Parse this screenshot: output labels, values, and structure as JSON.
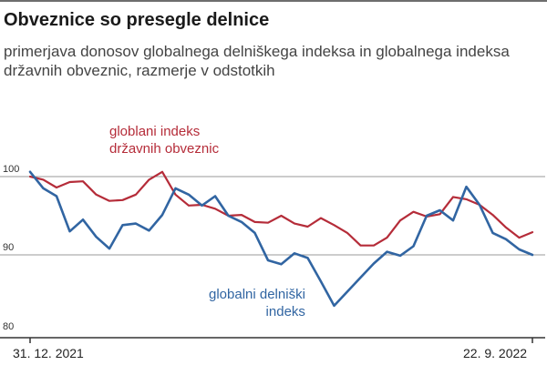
{
  "title": "Obveznice so presegle delnice",
  "subtitle": "primerjava donosov globalnega delniškega indeksa in globalnega indeksa državnih obveznic, razmerje v odstotkih",
  "chart_data": {
    "type": "line",
    "title": "Obveznice so presegle delnice",
    "subtitle": "primerjava donosov globalnega delniškega indeksa in globalnega indeksa državnih obveznic, razmerje v odstotkih",
    "xlabel": "",
    "ylabel": "",
    "x_ticks": [
      "31. 12. 2021",
      "22. 9. 2022"
    ],
    "y_ticks": [
      100,
      90,
      80
    ],
    "ylim": [
      79,
      103
    ],
    "grid": "horizontal at 100 and 90",
    "x": [
      0,
      1,
      2,
      3,
      4,
      5,
      6,
      7,
      8,
      9,
      10,
      11,
      12,
      13,
      14,
      15,
      16,
      17,
      18,
      19,
      20,
      21,
      22,
      23,
      24,
      25,
      26,
      27,
      28,
      29,
      30,
      31,
      32,
      33,
      34,
      35,
      36,
      37,
      38
    ],
    "series": [
      {
        "name": "globlani indeks državnih obveznic",
        "label_lines": [
          "globlani indeks",
          "državnih obveznic"
        ],
        "color": "#b52c39",
        "values": [
          100.0,
          99.6,
          98.6,
          99.3,
          99.4,
          97.7,
          96.9,
          97.0,
          97.7,
          99.6,
          100.6,
          97.7,
          96.3,
          96.4,
          95.9,
          95.0,
          95.1,
          94.2,
          94.1,
          95.0,
          94.0,
          93.6,
          94.7,
          93.8,
          92.8,
          91.2,
          91.2,
          92.2,
          94.4,
          95.5,
          94.9,
          95.2,
          97.4,
          97.1,
          96.4,
          95.1,
          93.5,
          92.2,
          92.9
        ]
      },
      {
        "name": "globalni delniški indeks",
        "label_lines": [
          "globalni delniški",
          "indeks"
        ],
        "color": "#3165a2",
        "values": [
          100.6,
          98.5,
          97.5,
          93.0,
          94.5,
          92.3,
          90.8,
          93.8,
          94.0,
          93.1,
          95.1,
          98.5,
          97.7,
          96.3,
          97.5,
          95.0,
          94.2,
          92.8,
          89.3,
          88.8,
          90.2,
          89.6,
          86.6,
          83.5,
          85.3,
          87.1,
          88.9,
          90.4,
          89.9,
          91.1,
          95.0,
          95.7,
          94.4,
          98.7,
          96.4,
          92.8,
          92.0,
          90.7,
          90.0
        ]
      }
    ]
  }
}
